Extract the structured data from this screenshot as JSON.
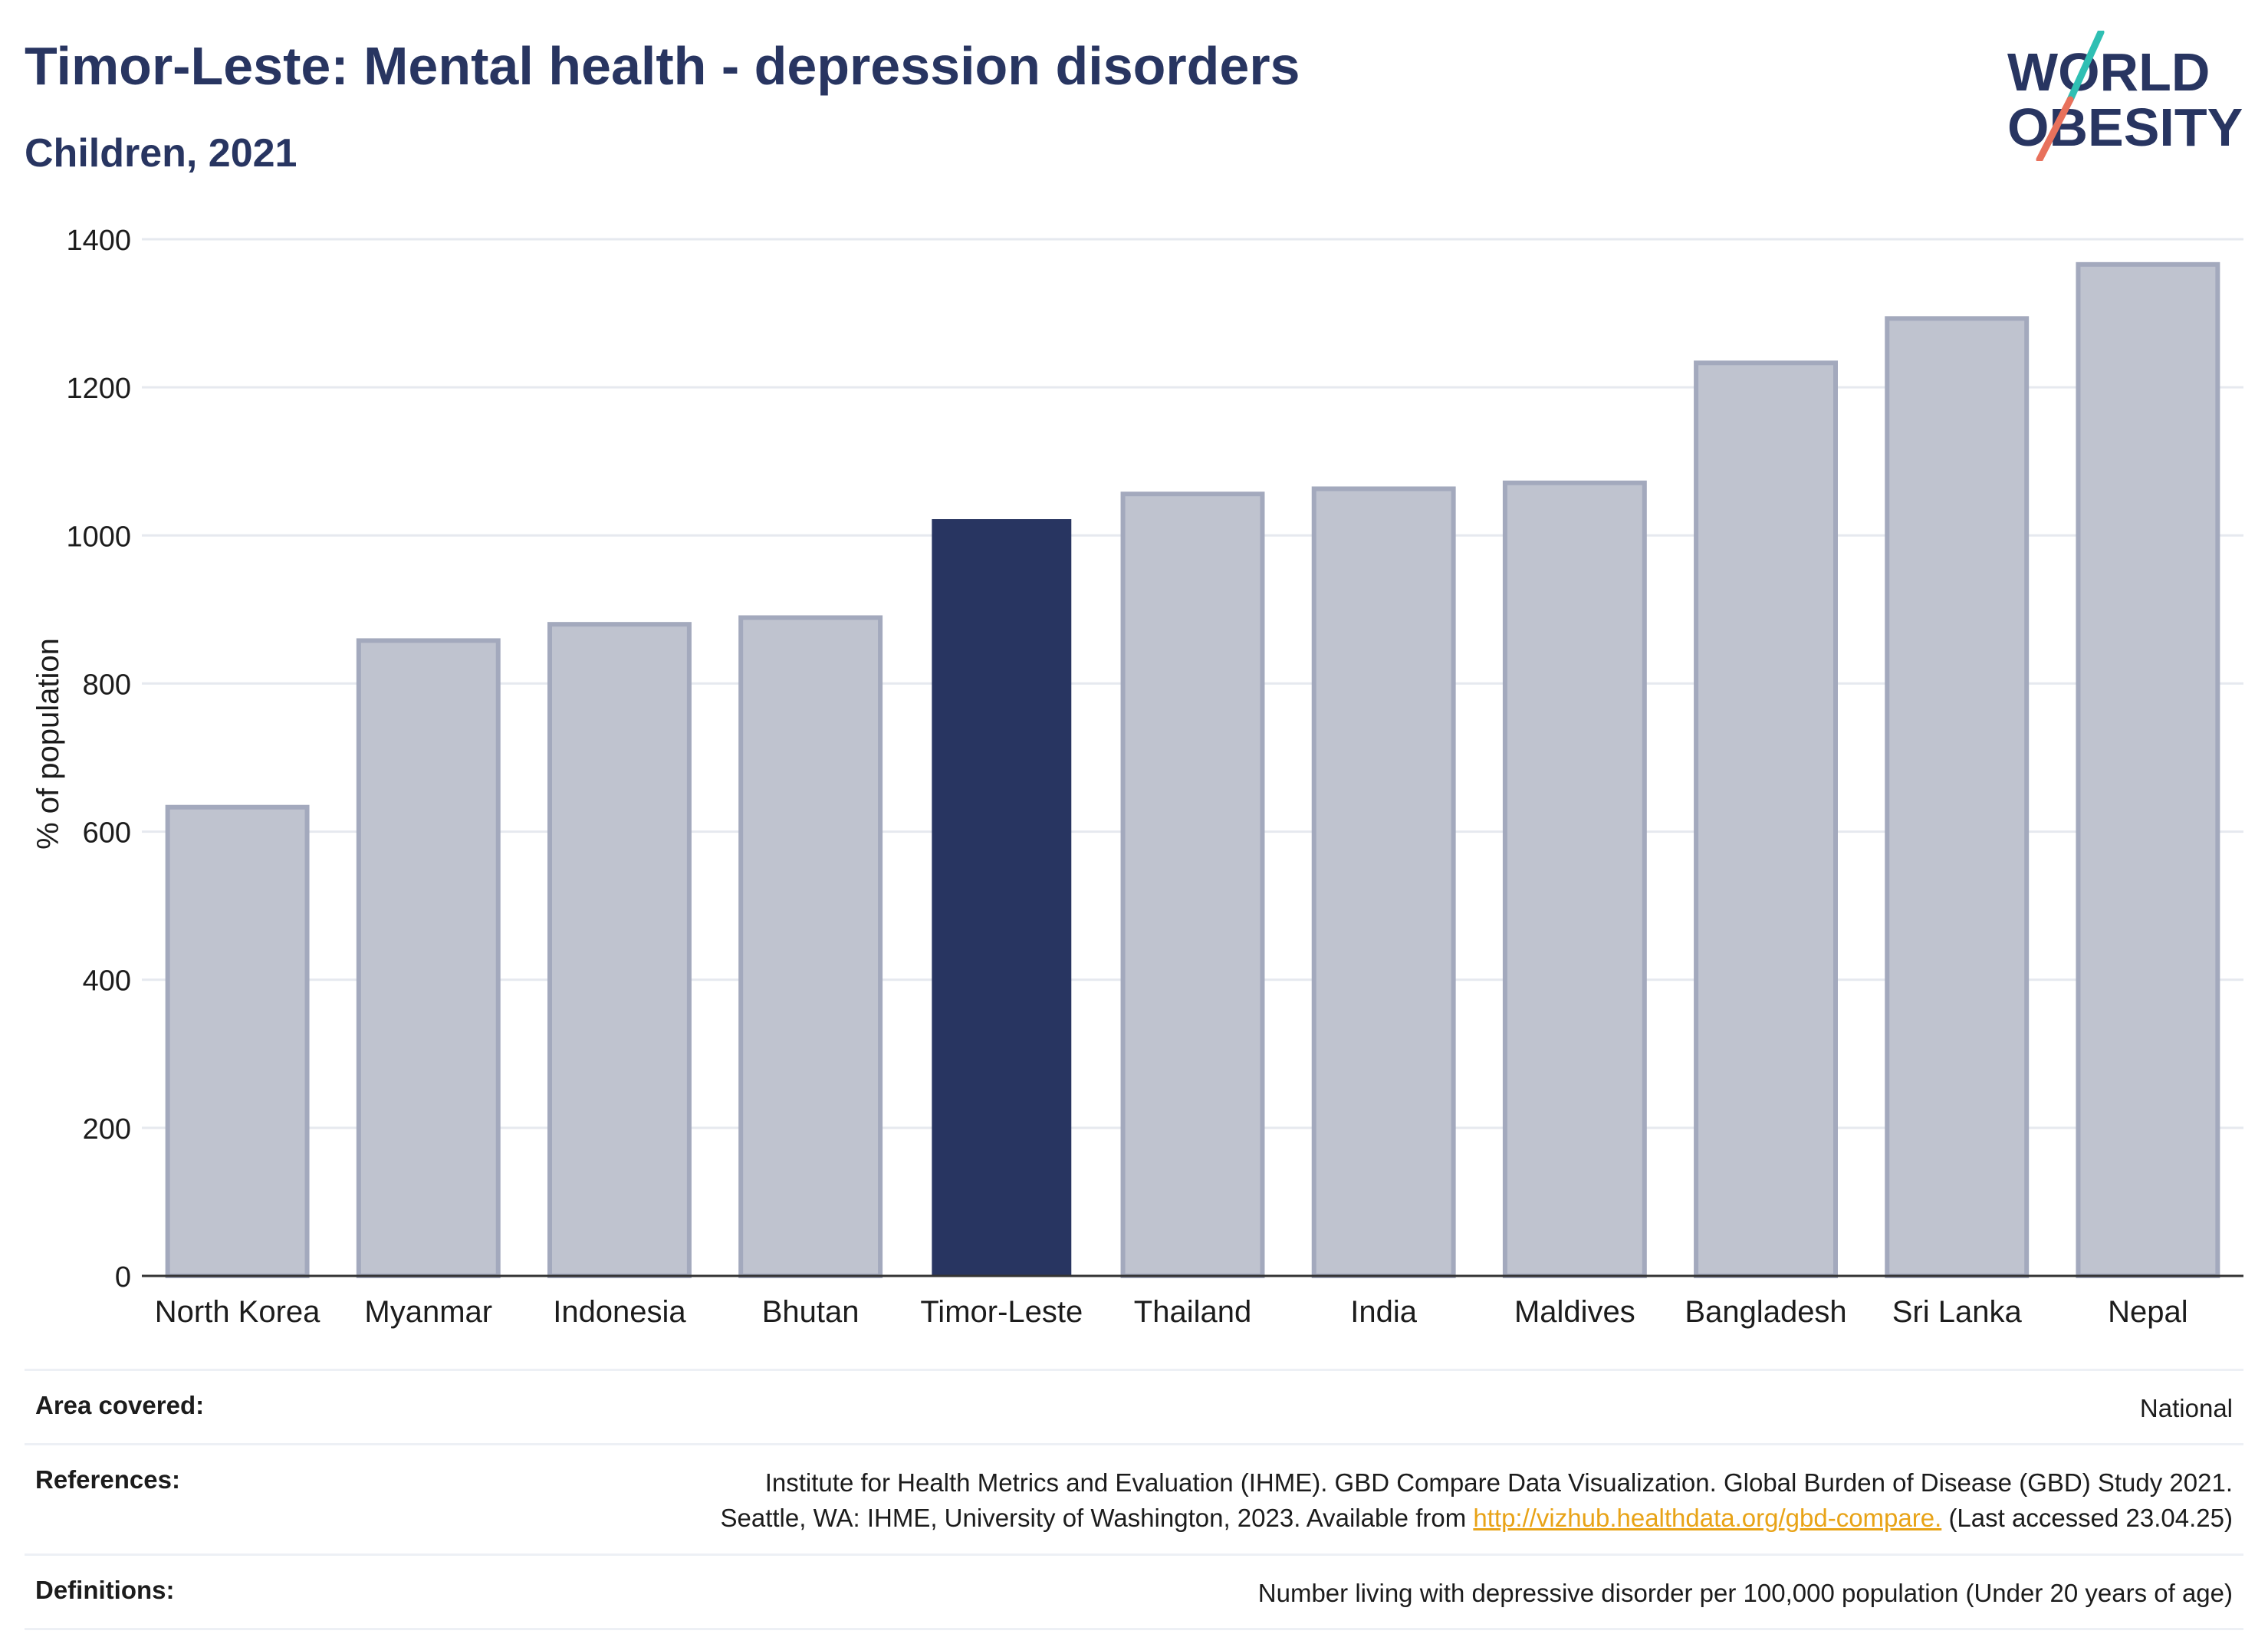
{
  "header": {
    "title": "Timor-Leste: Mental health - depression disorders",
    "subtitle": "Children, 2021"
  },
  "logo": {
    "line1": "WORLD",
    "line2": "OBESITY"
  },
  "chart_data": {
    "type": "bar",
    "categories": [
      "North Korea",
      "Myanmar",
      "Indonesia",
      "Bhutan",
      "Timor-Leste",
      "Thailand",
      "India",
      "Maldives",
      "Bangladesh",
      "Sri Lanka",
      "Nepal"
    ],
    "values": [
      633,
      858,
      880,
      889,
      1022,
      1056,
      1063,
      1071,
      1233,
      1293,
      1366
    ],
    "highlight": "Timor-Leste",
    "ylabel": "% of population",
    "xlabel": "",
    "ylim": [
      0,
      1400
    ],
    "yticks": [
      0,
      200,
      400,
      600,
      800,
      1000,
      1200,
      1400
    ],
    "grid": true,
    "colors": {
      "highlight": "#283561",
      "other": "#bfc3cf",
      "other_border": "#a3a9bd",
      "grid": "#e6e9ef"
    }
  },
  "footer": {
    "area_label": "Area covered:",
    "area_value": "National",
    "references_label": "References:",
    "references_line1": "Institute for Health Metrics and Evaluation (IHME). GBD Compare Data Visualization. Global Burden of Disease (GBD) Study 2021.",
    "references_line2_pre": "Seattle, WA: IHME, University of Washington, 2023. Available from",
    "references_link": "http://vizhub.healthdata.org/gbd-compare.",
    "references_line2_post": "(Last accessed 23.04.25)",
    "definitions_label": "Definitions:",
    "definitions_value": "Number living with depressive disorder per 100,000 population (Under 20 years of age)"
  }
}
